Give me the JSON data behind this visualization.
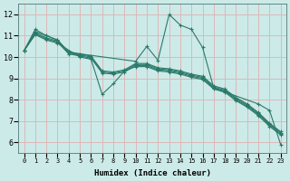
{
  "xlabel": "Humidex (Indice chaleur)",
  "bg_color": "#cceae8",
  "grid_color": "#ddb8b8",
  "line_color": "#2a7a6a",
  "xlim": [
    -0.5,
    23.5
  ],
  "ylim": [
    5.5,
    12.5
  ],
  "xticks": [
    0,
    1,
    2,
    3,
    4,
    5,
    6,
    7,
    8,
    9,
    10,
    11,
    12,
    13,
    14,
    15,
    16,
    17,
    18,
    19,
    20,
    21,
    22,
    23
  ],
  "yticks": [
    6,
    7,
    8,
    9,
    10,
    11,
    12
  ],
  "series": [
    {
      "x": [
        0,
        1,
        2,
        3,
        4,
        5,
        10,
        11,
        12,
        13,
        14,
        15,
        16,
        17,
        21,
        22,
        23
      ],
      "y": [
        10.3,
        11.3,
        11.0,
        10.8,
        10.2,
        10.15,
        9.8,
        10.5,
        9.85,
        12.0,
        11.5,
        11.3,
        10.45,
        8.55,
        7.8,
        7.5,
        5.9
      ]
    },
    {
      "x": [
        0,
        1,
        2,
        3,
        4,
        5,
        6,
        7,
        8,
        9,
        10,
        11,
        12,
        13,
        14,
        15,
        16,
        17,
        18,
        19,
        20,
        21,
        22,
        23
      ],
      "y": [
        10.3,
        11.2,
        11.0,
        10.8,
        10.25,
        10.15,
        10.05,
        9.35,
        9.3,
        9.4,
        9.7,
        9.7,
        9.5,
        9.45,
        9.35,
        9.2,
        9.1,
        8.65,
        8.5,
        8.1,
        7.8,
        7.4,
        6.9,
        6.5
      ]
    },
    {
      "x": [
        0,
        1,
        2,
        3,
        4,
        5,
        6,
        7,
        8,
        9,
        10,
        11,
        12,
        13,
        14,
        15,
        16,
        17,
        18,
        19,
        20,
        21,
        22,
        23
      ],
      "y": [
        10.3,
        11.15,
        10.9,
        10.75,
        10.2,
        10.1,
        10.0,
        9.3,
        9.25,
        9.35,
        9.65,
        9.65,
        9.45,
        9.4,
        9.3,
        9.15,
        9.05,
        8.6,
        8.45,
        8.05,
        7.75,
        7.35,
        6.85,
        6.45
      ]
    },
    {
      "x": [
        0,
        1,
        2,
        3,
        4,
        5,
        6,
        7,
        8,
        9,
        10,
        11,
        12,
        13,
        14,
        15,
        16,
        17,
        18,
        19,
        20,
        21,
        22,
        23
      ],
      "y": [
        10.3,
        11.1,
        10.85,
        10.7,
        10.15,
        10.05,
        9.95,
        9.25,
        9.2,
        9.3,
        9.6,
        9.6,
        9.4,
        9.35,
        9.25,
        9.1,
        9.0,
        8.55,
        8.4,
        8.0,
        7.7,
        7.3,
        6.8,
        6.4
      ]
    },
    {
      "x": [
        0,
        1,
        2,
        3,
        5,
        6,
        7,
        8,
        9,
        10,
        11,
        12,
        13,
        14,
        15,
        16,
        17,
        18,
        19,
        20,
        21,
        22,
        23
      ],
      "y": [
        10.3,
        11.05,
        10.8,
        10.65,
        10.0,
        9.9,
        8.25,
        8.75,
        9.35,
        9.55,
        9.55,
        9.35,
        9.3,
        9.2,
        9.05,
        8.95,
        8.5,
        8.35,
        7.95,
        7.65,
        7.25,
        6.75,
        6.35
      ]
    }
  ]
}
